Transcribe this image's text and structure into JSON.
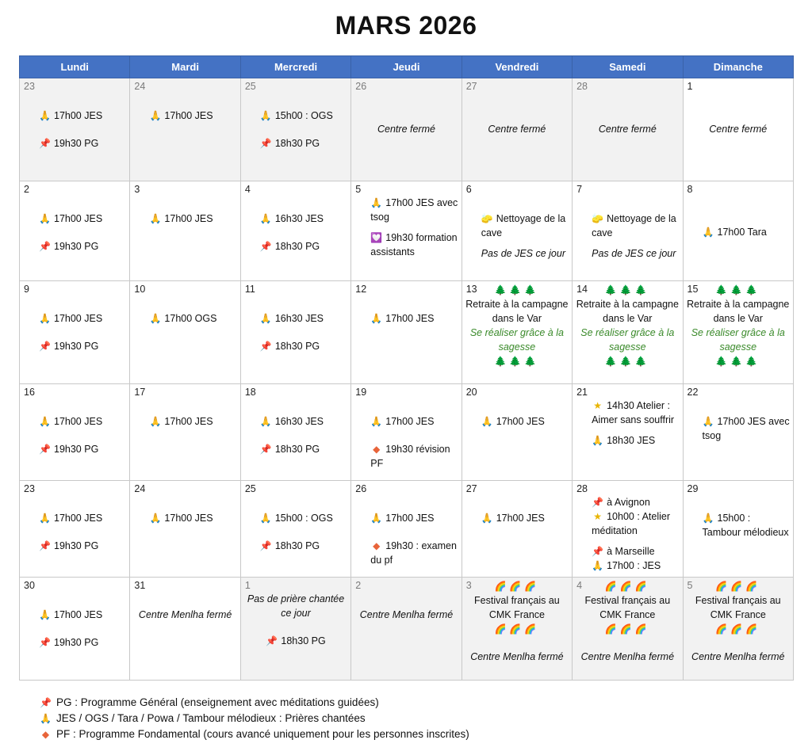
{
  "title": "MARS 2026",
  "headers": [
    "Lundi",
    "Mardi",
    "Mercredi",
    "Jeudi",
    "Vendredi",
    "Samedi",
    "Dimanche"
  ],
  "weeks": [
    [
      {
        "n": "23",
        "grey": true,
        "lines": [
          {
            "i": "pray",
            "t": "17h00 JES"
          },
          {
            "gap": true
          },
          {
            "i": "pin",
            "t": "19h30 PG"
          }
        ]
      },
      {
        "n": "24",
        "grey": true,
        "lines": [
          {
            "i": "pray",
            "t": "17h00 JES"
          }
        ]
      },
      {
        "n": "25",
        "grey": true,
        "lines": [
          {
            "i": "pray",
            "t": "15h00 : OGS"
          },
          {
            "gap": true
          },
          {
            "i": "pin",
            "t": "18h30 PG"
          }
        ]
      },
      {
        "n": "26",
        "grey": true,
        "center": true,
        "lines": [
          {
            "t": "Centre fermé",
            "it": true
          }
        ]
      },
      {
        "n": "27",
        "grey": true,
        "center": true,
        "lines": [
          {
            "t": "Centre fermé",
            "it": true
          }
        ]
      },
      {
        "n": "28",
        "grey": true,
        "center": true,
        "lines": [
          {
            "t": "Centre fermé",
            "it": true
          }
        ]
      },
      {
        "n": "1",
        "center": true,
        "lines": [
          {
            "t": "Centre fermé",
            "it": true
          }
        ]
      }
    ],
    [
      {
        "n": "2",
        "lines": [
          {
            "i": "pray",
            "t": "17h00 JES"
          },
          {
            "gap": true
          },
          {
            "i": "pin",
            "t": "19h30 PG"
          }
        ]
      },
      {
        "n": "3",
        "lines": [
          {
            "i": "pray",
            "t": "17h00 JES"
          }
        ]
      },
      {
        "n": "4",
        "lines": [
          {
            "i": "pray",
            "t": "16h30 JES"
          },
          {
            "gap": true
          },
          {
            "i": "pin",
            "t": "18h30 PG"
          }
        ]
      },
      {
        "n": "5",
        "top": true,
        "lines": [
          {
            "i": "pray",
            "t": "17h00 JES avec tsog"
          },
          {
            "small": true
          },
          {
            "i": "heart",
            "t": "19h30 formation assistants"
          }
        ]
      },
      {
        "n": "6",
        "lines": [
          {
            "i": "bucket",
            "t": "Nettoyage de la cave"
          },
          {
            "small": true
          },
          {
            "t": "Pas de JES ce jour",
            "it": true
          }
        ]
      },
      {
        "n": "7",
        "lines": [
          {
            "i": "bucket",
            "t": "Nettoyage de la cave"
          },
          {
            "small": true
          },
          {
            "t": "Pas de JES ce jour",
            "it": true
          }
        ]
      },
      {
        "n": "8",
        "lines": [
          {
            "gap": true
          },
          {
            "i": "pray",
            "t": "17h00 Tara"
          }
        ]
      }
    ],
    [
      {
        "n": "9",
        "lines": [
          {
            "i": "pray",
            "t": "17h00 JES"
          },
          {
            "gap": true
          },
          {
            "i": "pin",
            "t": "19h30 PG"
          }
        ]
      },
      {
        "n": "10",
        "lines": [
          {
            "i": "pray",
            "t": "17h00 OGS"
          }
        ]
      },
      {
        "n": "11",
        "lines": [
          {
            "i": "pray",
            "t": "16h30 JES"
          },
          {
            "gap": true
          },
          {
            "i": "pin",
            "t": "18h30 PG"
          }
        ]
      },
      {
        "n": "12",
        "lines": [
          {
            "i": "pray",
            "t": "17h00 JES"
          }
        ]
      },
      {
        "n": "13",
        "retreat": true,
        "lines": [
          {
            "tr": "🌲🌲🌲"
          },
          {
            "t": "Retraite à la campagne dans le Var"
          },
          {
            "t": "Se réaliser grâce à la sagesse",
            "gr": true
          },
          {
            "tr": "🌲🌲🌲"
          }
        ]
      },
      {
        "n": "14",
        "retreat": true,
        "lines": [
          {
            "tr": "🌲🌲🌲"
          },
          {
            "t": "Retraite à la campagne dans le Var"
          },
          {
            "t": "Se réaliser grâce à la sagesse",
            "gr": true
          },
          {
            "tr": "🌲🌲🌲"
          }
        ]
      },
      {
        "n": "15",
        "retreat": true,
        "lines": [
          {
            "tr": "🌲🌲🌲"
          },
          {
            "t": "Retraite à la campagne dans le Var"
          },
          {
            "t": "Se réaliser grâce à la sagesse",
            "gr": true
          },
          {
            "tr": "🌲🌲🌲"
          }
        ]
      }
    ],
    [
      {
        "n": "16",
        "lines": [
          {
            "i": "pray",
            "t": "17h00 JES"
          },
          {
            "gap": true
          },
          {
            "i": "pin",
            "t": "19h30 PG"
          }
        ]
      },
      {
        "n": "17",
        "lines": [
          {
            "i": "pray",
            "t": "17h00 JES"
          }
        ]
      },
      {
        "n": "18",
        "lines": [
          {
            "i": "pray",
            "t": "16h30 JES"
          },
          {
            "gap": true
          },
          {
            "i": "pin",
            "t": "18h30 PG"
          }
        ]
      },
      {
        "n": "19",
        "lines": [
          {
            "i": "pray",
            "t": "17h00 JES"
          },
          {
            "gap": true
          },
          {
            "i": "diamond",
            "t": "19h30 révision PF"
          }
        ]
      },
      {
        "n": "20",
        "lines": [
          {
            "i": "pray",
            "t": "17h00 JES"
          }
        ]
      },
      {
        "n": "21",
        "top": true,
        "lines": [
          {
            "i": "star",
            "t": "14h30 Atelier : Aimer sans souffrir"
          },
          {
            "small": true
          },
          {
            "i": "pray",
            "t": "18h30 JES"
          }
        ]
      },
      {
        "n": "22",
        "lines": [
          {
            "i": "pray",
            "t": "17h00 JES avec tsog"
          }
        ]
      }
    ],
    [
      {
        "n": "23",
        "lines": [
          {
            "i": "pray",
            "t": "17h00 JES"
          },
          {
            "gap": true
          },
          {
            "i": "pin",
            "t": "19h30 PG"
          }
        ]
      },
      {
        "n": "24",
        "lines": [
          {
            "i": "pray",
            "t": "17h00 JES"
          }
        ]
      },
      {
        "n": "25",
        "lines": [
          {
            "i": "pray",
            "t": "15h00 : OGS"
          },
          {
            "gap": true
          },
          {
            "i": "pin",
            "t": "18h30 PG"
          }
        ]
      },
      {
        "n": "26",
        "lines": [
          {
            "i": "pray",
            "t": "17h00 JES"
          },
          {
            "gap": true
          },
          {
            "i": "diamond",
            "t": "19h30 : examen du pf"
          }
        ]
      },
      {
        "n": "27",
        "lines": [
          {
            "i": "pray",
            "t": "17h00 JES"
          }
        ]
      },
      {
        "n": "28",
        "top": true,
        "lines": [
          {
            "i": "pin",
            "t": "à Avignon"
          },
          {
            "i": "star",
            "t": "10h00 : Atelier méditation"
          },
          {
            "small": true
          },
          {
            "i": "pin",
            "t": "à Marseille"
          },
          {
            "i": "pray",
            "t": "17h00 : JES"
          }
        ]
      },
      {
        "n": "29",
        "lines": [
          {
            "i": "pray",
            "t": "15h00 : Tambour mélodieux"
          }
        ]
      }
    ],
    [
      {
        "n": "30",
        "lines": [
          {
            "i": "pray",
            "t": "17h00 JES"
          },
          {
            "gap": true
          },
          {
            "i": "pin",
            "t": "19h30 PG"
          }
        ]
      },
      {
        "n": "31",
        "center": true,
        "lines": [
          {
            "t": "Centre Menlha fermé",
            "it": true
          }
        ]
      },
      {
        "n": "1",
        "grey": true,
        "center": true,
        "top": true,
        "lines": [
          {
            "t": "Pas de prière chantée ce jour",
            "it": true
          },
          {
            "gap": true
          },
          {
            "i": "pin",
            "t": "18h30 PG"
          }
        ]
      },
      {
        "n": "2",
        "grey": true,
        "center": true,
        "lines": [
          {
            "t": "Centre Menlha fermé",
            "it": true
          }
        ]
      },
      {
        "n": "3",
        "grey": true,
        "retreat": true,
        "lines": [
          {
            "rb": "🌈🌈🌈"
          },
          {
            "t": "Festival français au CMK France"
          },
          {
            "rb": "🌈🌈🌈"
          },
          {
            "gap": true
          },
          {
            "t": "Centre Menlha fermé",
            "it": true
          }
        ]
      },
      {
        "n": "4",
        "grey": true,
        "retreat": true,
        "lines": [
          {
            "rb": "🌈🌈🌈"
          },
          {
            "t": "Festival français au CMK France"
          },
          {
            "rb": "🌈🌈🌈"
          },
          {
            "gap": true
          },
          {
            "t": "Centre Menlha fermé",
            "it": true
          }
        ]
      },
      {
        "n": "5",
        "grey": true,
        "retreat": true,
        "lines": [
          {
            "rb": "🌈🌈🌈"
          },
          {
            "t": "Festival français au CMK France"
          },
          {
            "rb": "🌈🌈🌈"
          },
          {
            "gap": true
          },
          {
            "t": "Centre Menlha fermé",
            "it": true
          }
        ]
      }
    ]
  ],
  "legend": [
    {
      "i": "pin",
      "t": "PG : Programme Général (enseignement avec méditations guidées)"
    },
    {
      "i": "pray",
      "t": "JES / OGS / Tara / Powa / Tambour mélodieux : Prières chantées"
    },
    {
      "i": "diamond",
      "t": "PF : Programme Fondamental (cours avancé uniquement pour les personnes inscrites)"
    }
  ],
  "icons": {
    "pray": {
      "glyph": "🙏",
      "color": "#e0a020",
      "name": "praying-hands-icon"
    },
    "pin": {
      "glyph": "📌",
      "color": "#d83a3a",
      "name": "pushpin-icon"
    },
    "heart": {
      "glyph": "💟",
      "color": "#8a5cc8",
      "name": "heart-decoration-icon"
    },
    "bucket": {
      "glyph": "🧽",
      "color": "#e8893a",
      "name": "sponge-icon"
    },
    "diamond": {
      "glyph": "◆",
      "color": "#e8643a",
      "name": "orange-diamond-icon"
    },
    "star": {
      "glyph": "★",
      "color": "#e8b400",
      "name": "star-icon"
    }
  }
}
